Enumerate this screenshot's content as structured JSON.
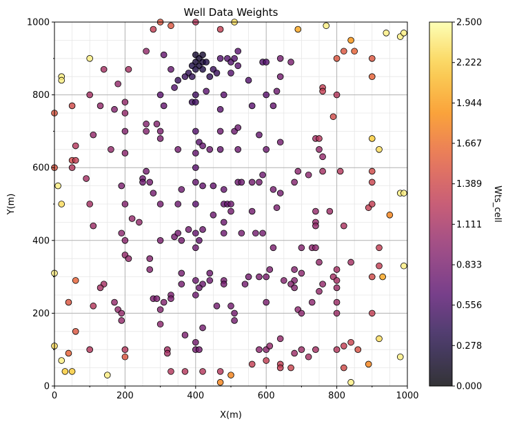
{
  "chart_data": {
    "type": "scatter",
    "title": "Well Data Weights",
    "xlabel": "X(m)",
    "ylabel": "Y(m)",
    "xlim": [
      0,
      1000
    ],
    "ylim": [
      0,
      1000
    ],
    "x_ticks": [
      "0",
      "200",
      "400",
      "600",
      "800",
      "1000"
    ],
    "y_ticks": [
      "0",
      "200",
      "400",
      "600",
      "800",
      "1000"
    ],
    "grid": true,
    "colormap": "inferno",
    "colorbar": {
      "label": "Wts_cell",
      "min": 0.0,
      "max": 2.5,
      "ticks": [
        "0.000",
        "0.278",
        "0.556",
        "0.833",
        "1.111",
        "1.389",
        "1.667",
        "1.944",
        "2.222",
        "2.500"
      ]
    },
    "points": [
      [
        400,
        910,
        0.2
      ],
      [
        410,
        900,
        0.2
      ],
      [
        420,
        910,
        0.2
      ],
      [
        400,
        890,
        0.25
      ],
      [
        410,
        880,
        0.25
      ],
      [
        390,
        880,
        0.3
      ],
      [
        420,
        890,
        0.25
      ],
      [
        430,
        890,
        0.3
      ],
      [
        400,
        870,
        0.3
      ],
      [
        420,
        870,
        0.3
      ],
      [
        380,
        860,
        0.4
      ],
      [
        370,
        850,
        0.45
      ],
      [
        390,
        850,
        0.4
      ],
      [
        350,
        840,
        0.45
      ],
      [
        440,
        850,
        0.4
      ],
      [
        450,
        870,
        0.45
      ],
      [
        460,
        860,
        0.45
      ],
      [
        470,
        900,
        0.6
      ],
      [
        490,
        900,
        0.6
      ],
      [
        500,
        890,
        0.6
      ],
      [
        510,
        900,
        0.6
      ],
      [
        520,
        920,
        0.65
      ],
      [
        500,
        860,
        0.6
      ],
      [
        520,
        880,
        0.65
      ],
      [
        340,
        820,
        0.6
      ],
      [
        330,
        870,
        0.7
      ],
      [
        310,
        910,
        0.7
      ],
      [
        300,
        800,
        0.65
      ],
      [
        310,
        770,
        0.7
      ],
      [
        390,
        780,
        0.5
      ],
      [
        400,
        780,
        0.5
      ],
      [
        400,
        800,
        0.5
      ],
      [
        430,
        810,
        0.65
      ],
      [
        470,
        760,
        0.65
      ],
      [
        480,
        800,
        0.65
      ],
      [
        550,
        840,
        0.6
      ],
      [
        560,
        770,
        0.65
      ],
      [
        590,
        890,
        0.6
      ],
      [
        600,
        890,
        0.6
      ],
      [
        600,
        800,
        0.65
      ],
      [
        620,
        770,
        0.7
      ],
      [
        630,
        810,
        0.75
      ],
      [
        640,
        850,
        0.8
      ],
      [
        640,
        900,
        0.8
      ],
      [
        670,
        890,
        0.85
      ],
      [
        280,
        980,
        1.3
      ],
      [
        300,
        1000,
        1.5
      ],
      [
        330,
        990,
        1.5
      ],
      [
        400,
        1000,
        1.2
      ],
      [
        470,
        980,
        1.3
      ],
      [
        510,
        1000,
        2.3
      ],
      [
        690,
        980,
        2.0
      ],
      [
        770,
        990,
        2.4
      ],
      [
        840,
        950,
        1.9
      ],
      [
        850,
        920,
        1.6
      ],
      [
        820,
        920,
        1.5
      ],
      [
        800,
        900,
        1.5
      ],
      [
        900,
        900,
        1.5
      ],
      [
        900,
        850,
        1.6
      ],
      [
        940,
        970,
        2.4
      ],
      [
        980,
        960,
        2.4
      ],
      [
        990,
        970,
        2.4
      ],
      [
        760,
        820,
        1.3
      ],
      [
        760,
        810,
        1.3
      ],
      [
        800,
        800,
        1.2
      ],
      [
        790,
        740,
        1.4
      ],
      [
        100,
        900,
        2.4
      ],
      [
        20,
        850,
        2.4
      ],
      [
        20,
        840,
        2.4
      ],
      [
        50,
        770,
        1.4
      ],
      [
        0,
        750,
        1.5
      ],
      [
        140,
        870,
        1.1
      ],
      [
        210,
        870,
        1.1
      ],
      [
        100,
        800,
        1.1
      ],
      [
        130,
        770,
        1.0
      ],
      [
        170,
        760,
        0.9
      ],
      [
        200,
        780,
        1.0
      ],
      [
        180,
        830,
        1.0
      ],
      [
        200,
        750,
        1.0
      ],
      [
        260,
        920,
        1.0
      ],
      [
        260,
        720,
        0.9
      ],
      [
        260,
        700,
        0.9
      ],
      [
        290,
        720,
        0.9
      ],
      [
        300,
        700,
        0.85
      ],
      [
        300,
        680,
        0.85
      ],
      [
        200,
        700,
        0.9
      ],
      [
        110,
        690,
        1.0
      ],
      [
        60,
        660,
        1.2
      ],
      [
        50,
        620,
        1.4
      ],
      [
        60,
        620,
        1.3
      ],
      [
        0,
        600,
        1.5
      ],
      [
        10,
        550,
        2.4
      ],
      [
        20,
        500,
        2.3
      ],
      [
        160,
        650,
        1.0
      ],
      [
        200,
        640,
        0.95
      ],
      [
        350,
        650,
        0.8
      ],
      [
        400,
        700,
        0.6
      ],
      [
        410,
        670,
        0.65
      ],
      [
        420,
        660,
        0.7
      ],
      [
        400,
        640,
        0.7
      ],
      [
        440,
        650,
        0.75
      ],
      [
        470,
        700,
        0.75
      ],
      [
        510,
        700,
        0.75
      ],
      [
        520,
        710,
        0.75
      ],
      [
        520,
        650,
        0.75
      ],
      [
        470,
        650,
        0.7
      ],
      [
        580,
        690,
        0.7
      ],
      [
        600,
        650,
        0.75
      ],
      [
        640,
        670,
        0.8
      ],
      [
        740,
        680,
        1.1
      ],
      [
        750,
        680,
        1.2
      ],
      [
        750,
        650,
        1.0
      ],
      [
        760,
        630,
        1.0
      ],
      [
        760,
        590,
        1.1
      ],
      [
        810,
        590,
        1.2
      ],
      [
        690,
        590,
        0.95
      ],
      [
        720,
        580,
        0.95
      ],
      [
        590,
        580,
        0.75
      ],
      [
        620,
        540,
        0.8
      ],
      [
        640,
        530,
        0.8
      ],
      [
        520,
        560,
        0.75
      ],
      [
        530,
        560,
        0.75
      ],
      [
        560,
        560,
        0.8
      ],
      [
        580,
        560,
        0.8
      ],
      [
        260,
        590,
        0.8
      ],
      [
        250,
        570,
        0.75
      ],
      [
        250,
        560,
        0.75
      ],
      [
        270,
        560,
        0.8
      ],
      [
        280,
        530,
        0.8
      ],
      [
        190,
        550,
        0.85
      ],
      [
        200,
        500,
        0.9
      ],
      [
        100,
        500,
        1.1
      ],
      [
        90,
        570,
        1.1
      ],
      [
        50,
        600,
        1.2
      ],
      [
        300,
        500,
        0.8
      ],
      [
        350,
        500,
        0.75
      ],
      [
        360,
        540,
        0.75
      ],
      [
        400,
        600,
        0.65
      ],
      [
        400,
        560,
        0.7
      ],
      [
        400,
        500,
        0.65
      ],
      [
        420,
        550,
        0.7
      ],
      [
        450,
        550,
        0.7
      ],
      [
        480,
        540,
        0.7
      ],
      [
        480,
        500,
        0.7
      ],
      [
        490,
        500,
        0.7
      ],
      [
        500,
        500,
        0.75
      ],
      [
        450,
        470,
        0.75
      ],
      [
        480,
        450,
        0.75
      ],
      [
        500,
        480,
        0.8
      ],
      [
        560,
        480,
        0.8
      ],
      [
        630,
        490,
        0.85
      ],
      [
        680,
        560,
        0.9
      ],
      [
        740,
        480,
        1.0
      ],
      [
        740,
        450,
        1.0
      ],
      [
        740,
        440,
        1.0
      ],
      [
        780,
        480,
        1.05
      ],
      [
        820,
        440,
        1.15
      ],
      [
        890,
        490,
        1.3
      ],
      [
        900,
        500,
        1.3
      ],
      [
        900,
        560,
        1.35
      ],
      [
        900,
        590,
        1.4
      ],
      [
        900,
        680,
        2.2
      ],
      [
        920,
        650,
        2.3
      ],
      [
        950,
        470,
        1.8
      ],
      [
        980,
        530,
        2.4
      ],
      [
        990,
        530,
        2.4
      ],
      [
        220,
        460,
        1.0
      ],
      [
        240,
        450,
        1.0
      ],
      [
        110,
        440,
        1.05
      ],
      [
        190,
        420,
        0.95
      ],
      [
        200,
        400,
        0.95
      ],
      [
        200,
        360,
        1.0
      ],
      [
        210,
        350,
        1.0
      ],
      [
        300,
        400,
        0.85
      ],
      [
        340,
        410,
        0.8
      ],
      [
        400,
        420,
        0.7
      ],
      [
        410,
        400,
        0.7
      ],
      [
        400,
        380,
        0.75
      ],
      [
        360,
        400,
        0.8
      ],
      [
        350,
        420,
        0.8
      ],
      [
        380,
        430,
        0.8
      ],
      [
        420,
        430,
        0.75
      ],
      [
        480,
        420,
        0.75
      ],
      [
        530,
        420,
        0.8
      ],
      [
        570,
        420,
        0.8
      ],
      [
        590,
        420,
        0.8
      ],
      [
        620,
        380,
        0.85
      ],
      [
        730,
        380,
        0.95
      ],
      [
        740,
        380,
        0.95
      ],
      [
        750,
        340,
        1.0
      ],
      [
        700,
        380,
        0.9
      ],
      [
        920,
        380,
        1.3
      ],
      [
        920,
        330,
        1.3
      ],
      [
        990,
        330,
        2.4
      ],
      [
        930,
        300,
        2.0
      ],
      [
        900,
        300,
        1.4
      ],
      [
        840,
        340,
        1.1
      ],
      [
        800,
        320,
        1.1
      ],
      [
        790,
        300,
        1.1
      ],
      [
        800,
        290,
        1.1
      ],
      [
        700,
        310,
        0.95
      ],
      [
        680,
        320,
        0.9
      ],
      [
        650,
        290,
        0.9
      ],
      [
        680,
        290,
        0.9
      ],
      [
        600,
        300,
        0.85
      ],
      [
        610,
        320,
        0.85
      ],
      [
        580,
        300,
        0.85
      ],
      [
        550,
        300,
        0.8
      ],
      [
        540,
        280,
        0.8
      ],
      [
        480,
        290,
        0.8
      ],
      [
        480,
        280,
        0.8
      ],
      [
        440,
        310,
        0.75
      ],
      [
        440,
        290,
        0.75
      ],
      [
        420,
        280,
        0.75
      ],
      [
        410,
        270,
        0.75
      ],
      [
        400,
        290,
        0.75
      ],
      [
        400,
        250,
        0.75
      ],
      [
        360,
        310,
        0.8
      ],
      [
        360,
        280,
        0.8
      ],
      [
        330,
        250,
        0.85
      ],
      [
        330,
        240,
        0.85
      ],
      [
        280,
        240,
        0.85
      ],
      [
        290,
        240,
        0.85
      ],
      [
        270,
        320,
        0.9
      ],
      [
        270,
        350,
        0.9
      ],
      [
        0,
        310,
        2.4
      ],
      [
        60,
        290,
        1.6
      ],
      [
        40,
        230,
        1.5
      ],
      [
        110,
        220,
        1.2
      ],
      [
        140,
        280,
        1.1
      ],
      [
        130,
        270,
        1.1
      ],
      [
        170,
        230,
        1.0
      ],
      [
        180,
        210,
        1.0
      ],
      [
        190,
        200,
        1.0
      ],
      [
        190,
        180,
        1.0
      ],
      [
        200,
        100,
        1.2
      ],
      [
        200,
        80,
        1.5
      ],
      [
        300,
        170,
        0.95
      ],
      [
        300,
        210,
        0.9
      ],
      [
        310,
        230,
        0.9
      ],
      [
        370,
        140,
        0.85
      ],
      [
        400,
        120,
        0.8
      ],
      [
        400,
        100,
        0.8
      ],
      [
        410,
        100,
        0.8
      ],
      [
        420,
        160,
        0.8
      ],
      [
        460,
        220,
        0.8
      ],
      [
        500,
        220,
        0.8
      ],
      [
        510,
        180,
        0.8
      ],
      [
        510,
        200,
        0.8
      ],
      [
        600,
        230,
        0.85
      ],
      [
        670,
        280,
        0.9
      ],
      [
        680,
        270,
        0.9
      ],
      [
        690,
        210,
        0.95
      ],
      [
        700,
        200,
        0.95
      ],
      [
        730,
        230,
        0.95
      ],
      [
        750,
        260,
        1.0
      ],
      [
        760,
        280,
        1.0
      ],
      [
        800,
        270,
        1.05
      ],
      [
        800,
        230,
        1.05
      ],
      [
        800,
        200,
        1.05
      ],
      [
        900,
        200,
        1.3
      ],
      [
        580,
        100,
        0.95
      ],
      [
        600,
        100,
        0.95
      ],
      [
        610,
        110,
        1.0
      ],
      [
        640,
        130,
        1.0
      ],
      [
        680,
        90,
        1.05
      ],
      [
        700,
        100,
        1.05
      ],
      [
        720,
        80,
        1.1
      ],
      [
        740,
        100,
        1.1
      ],
      [
        800,
        100,
        1.2
      ],
      [
        820,
        110,
        1.3
      ],
      [
        840,
        120,
        1.35
      ],
      [
        860,
        100,
        1.45
      ],
      [
        890,
        60,
        1.8
      ],
      [
        920,
        130,
        2.3
      ],
      [
        980,
        80,
        2.4
      ],
      [
        840,
        10,
        2.4
      ],
      [
        820,
        50,
        1.4
      ],
      [
        0,
        110,
        2.3
      ],
      [
        20,
        70,
        2.4
      ],
      [
        30,
        40,
        2.2
      ],
      [
        50,
        40,
        2.2
      ],
      [
        40,
        90,
        1.6
      ],
      [
        60,
        150,
        1.5
      ],
      [
        100,
        100,
        1.2
      ],
      [
        150,
        30,
        2.4
      ],
      [
        320,
        100,
        1.1
      ],
      [
        320,
        90,
        1.1
      ],
      [
        330,
        40,
        1.2
      ],
      [
        370,
        40,
        1.2
      ],
      [
        420,
        40,
        1.2
      ],
      [
        470,
        40,
        1.2
      ],
      [
        470,
        10,
        1.8
      ],
      [
        500,
        30,
        1.8
      ],
      [
        560,
        60,
        1.3
      ],
      [
        600,
        70,
        1.3
      ],
      [
        640,
        60,
        1.3
      ],
      [
        640,
        50,
        1.3
      ],
      [
        670,
        50,
        1.35
      ]
    ]
  }
}
